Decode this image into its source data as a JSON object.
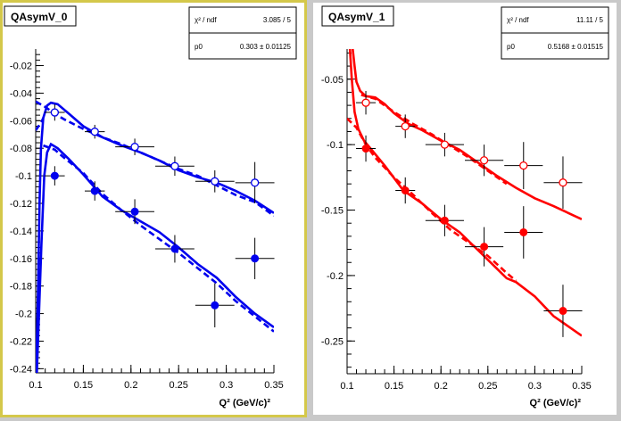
{
  "chart_data": [
    {
      "type": "scatter",
      "title": "QAsymV_0",
      "xlabel": "Q² (GeV/c)²",
      "ylabel": "",
      "xlim": [
        0.1,
        0.35
      ],
      "ylim": [
        -0.243,
        -0.008
      ],
      "xticks": [
        "0.1",
        "0.15",
        "0.2",
        "0.25",
        "0.3",
        "0.35"
      ],
      "yticks": [
        "-0.02",
        "-0.04",
        "-0.06",
        "-0.08",
        "-0.1",
        "-0.12",
        "-0.14",
        "-0.16",
        "-0.18",
        "-0.2",
        "-0.22",
        "-0.24"
      ],
      "color": "#0000ee",
      "frame_color": "#d4c84a",
      "stats": {
        "rows": [
          {
            "label": "χ² / ndf",
            "value": "3.085 / 5"
          },
          {
            "label": "p0",
            "value": "0.303 ± 0.01125"
          }
        ]
      },
      "series": [
        {
          "marker": "open",
          "points": [
            {
              "x": 0.12,
              "y": -0.054,
              "xerr": 0.0105,
              "yerr": 0.006
            },
            {
              "x": 0.162,
              "y": -0.068,
              "xerr": 0.0105,
              "yerr": 0.005
            },
            {
              "x": 0.204,
              "y": -0.079,
              "xerr": 0.0205,
              "yerr": 0.006
            },
            {
              "x": 0.246,
              "y": -0.093,
              "xerr": 0.0205,
              "yerr": 0.007
            },
            {
              "x": 0.288,
              "y": -0.104,
              "xerr": 0.0205,
              "yerr": 0.008
            },
            {
              "x": 0.33,
              "y": -0.105,
              "xerr": 0.0205,
              "yerr": 0.015
            }
          ]
        },
        {
          "marker": "filled",
          "points": [
            {
              "x": 0.12,
              "y": -0.1,
              "xerr": 0.0105,
              "yerr": 0.007
            },
            {
              "x": 0.162,
              "y": -0.111,
              "xerr": 0.0105,
              "yerr": 0.007
            },
            {
              "x": 0.204,
              "y": -0.126,
              "xerr": 0.0205,
              "yerr": 0.009
            },
            {
              "x": 0.246,
              "y": -0.153,
              "xerr": 0.0205,
              "yerr": 0.01
            },
            {
              "x": 0.288,
              "y": -0.194,
              "xerr": 0.0205,
              "yerr": 0.016
            },
            {
              "x": 0.33,
              "y": -0.16,
              "xerr": 0.0205,
              "yerr": 0.015
            }
          ]
        }
      ],
      "curves": [
        {
          "style": "solid",
          "points": [
            [
              0.1005,
              -0.243
            ],
            [
              0.1025,
              -0.18
            ],
            [
              0.104,
              -0.12
            ],
            [
              0.1055,
              -0.08
            ],
            [
              0.108,
              -0.058
            ],
            [
              0.112,
              -0.049
            ],
            [
              0.116,
              -0.047
            ],
            [
              0.123,
              -0.048
            ],
            [
              0.135,
              -0.055
            ],
            [
              0.15,
              -0.064
            ],
            [
              0.17,
              -0.072
            ],
            [
              0.19,
              -0.078
            ],
            [
              0.21,
              -0.083
            ],
            [
              0.23,
              -0.089
            ],
            [
              0.25,
              -0.096
            ],
            [
              0.27,
              -0.101
            ],
            [
              0.29,
              -0.105
            ],
            [
              0.31,
              -0.111
            ],
            [
              0.33,
              -0.118
            ],
            [
              0.35,
              -0.127
            ]
          ]
        },
        {
          "style": "dashed",
          "points": [
            [
              0.1,
              -0.046
            ],
            [
              0.11,
              -0.05
            ],
            [
              0.12,
              -0.055
            ],
            [
              0.13,
              -0.059
            ],
            [
              0.15,
              -0.066
            ],
            [
              0.17,
              -0.072
            ],
            [
              0.19,
              -0.077
            ],
            [
              0.21,
              -0.083
            ],
            [
              0.23,
              -0.089
            ],
            [
              0.25,
              -0.095
            ],
            [
              0.27,
              -0.1
            ],
            [
              0.29,
              -0.107
            ],
            [
              0.31,
              -0.114
            ],
            [
              0.33,
              -0.119
            ],
            [
              0.35,
              -0.129
            ]
          ]
        },
        {
          "style": "dashed",
          "points": [
            [
              0.1,
              -0.067
            ],
            [
              0.103,
              -0.064
            ],
            [
              0.106,
              -0.061
            ],
            [
              0.108,
              -0.058
            ]
          ]
        },
        {
          "style": "solid",
          "points": [
            [
              0.1012,
              -0.243
            ],
            [
              0.1035,
              -0.2
            ],
            [
              0.106,
              -0.15
            ],
            [
              0.109,
              -0.1
            ],
            [
              0.112,
              -0.083
            ],
            [
              0.116,
              -0.077
            ],
            [
              0.123,
              -0.08
            ],
            [
              0.135,
              -0.088
            ],
            [
              0.15,
              -0.099
            ],
            [
              0.17,
              -0.115
            ],
            [
              0.19,
              -0.125
            ],
            [
              0.21,
              -0.133
            ],
            [
              0.23,
              -0.141
            ],
            [
              0.25,
              -0.152
            ],
            [
              0.27,
              -0.164
            ],
            [
              0.29,
              -0.174
            ],
            [
              0.31,
              -0.188
            ],
            [
              0.33,
              -0.2
            ],
            [
              0.35,
              -0.21
            ]
          ]
        },
        {
          "style": "dashed",
          "points": [
            [
              0.108,
              -0.078
            ],
            [
              0.12,
              -0.081
            ],
            [
              0.13,
              -0.087
            ],
            [
              0.15,
              -0.098
            ],
            [
              0.17,
              -0.113
            ],
            [
              0.19,
              -0.125
            ],
            [
              0.21,
              -0.136
            ],
            [
              0.23,
              -0.146
            ],
            [
              0.25,
              -0.156
            ],
            [
              0.27,
              -0.167
            ],
            [
              0.29,
              -0.178
            ],
            [
              0.31,
              -0.191
            ],
            [
              0.33,
              -0.202
            ],
            [
              0.35,
              -0.213
            ]
          ]
        }
      ]
    },
    {
      "type": "scatter",
      "title": "QAsymV_1",
      "xlabel": "Q² (GeV/c)²",
      "ylabel": "",
      "xlim": [
        0.1,
        0.35
      ],
      "ylim": [
        -0.275,
        -0.027
      ],
      "xticks": [
        "0.1",
        "0.15",
        "0.2",
        "0.25",
        "0.3",
        "0.35"
      ],
      "yticks": [
        "-0.05",
        "-0.1",
        "-0.15",
        "-0.2",
        "-0.25"
      ],
      "color": "#ff0000",
      "frame_color": "#ffffff",
      "stats": {
        "rows": [
          {
            "label": "χ² / ndf",
            "value": "11.11 / 5"
          },
          {
            "label": "p0",
            "value": "0.5168 ± 0.01515"
          }
        ]
      },
      "series": [
        {
          "marker": "open",
          "points": [
            {
              "x": 0.12,
              "y": -0.068,
              "xerr": 0.0105,
              "yerr": 0.009
            },
            {
              "x": 0.162,
              "y": -0.086,
              "xerr": 0.0105,
              "yerr": 0.009
            },
            {
              "x": 0.204,
              "y": -0.1,
              "xerr": 0.0205,
              "yerr": 0.009
            },
            {
              "x": 0.246,
              "y": -0.112,
              "xerr": 0.0205,
              "yerr": 0.012
            },
            {
              "x": 0.288,
              "y": -0.116,
              "xerr": 0.0205,
              "yerr": 0.018
            },
            {
              "x": 0.33,
              "y": -0.129,
              "xerr": 0.0205,
              "yerr": 0.02
            }
          ]
        },
        {
          "marker": "filled",
          "points": [
            {
              "x": 0.12,
              "y": -0.103,
              "xerr": 0.0105,
              "yerr": 0.01
            },
            {
              "x": 0.162,
              "y": -0.135,
              "xerr": 0.0105,
              "yerr": 0.01
            },
            {
              "x": 0.204,
              "y": -0.158,
              "xerr": 0.0205,
              "yerr": 0.012
            },
            {
              "x": 0.246,
              "y": -0.178,
              "xerr": 0.0205,
              "yerr": 0.015
            },
            {
              "x": 0.288,
              "y": -0.167,
              "xerr": 0.0205,
              "yerr": 0.02
            },
            {
              "x": 0.33,
              "y": -0.227,
              "xerr": 0.0205,
              "yerr": 0.02
            }
          ]
        }
      ],
      "curves": [
        {
          "style": "solid",
          "points": [
            [
              0.106,
              -0.027
            ],
            [
              0.108,
              -0.04
            ],
            [
              0.11,
              -0.052
            ],
            [
              0.114,
              -0.059
            ],
            [
              0.12,
              -0.063
            ],
            [
              0.13,
              -0.064
            ],
            [
              0.14,
              -0.069
            ],
            [
              0.15,
              -0.076
            ],
            [
              0.165,
              -0.084
            ],
            [
              0.18,
              -0.089
            ],
            [
              0.2,
              -0.097
            ],
            [
              0.22,
              -0.104
            ],
            [
              0.24,
              -0.114
            ],
            [
              0.26,
              -0.124
            ],
            [
              0.28,
              -0.133
            ],
            [
              0.3,
              -0.141
            ],
            [
              0.32,
              -0.147
            ],
            [
              0.35,
              -0.157
            ]
          ]
        },
        {
          "style": "dashed",
          "points": [
            [
              0.115,
              -0.062
            ],
            [
              0.13,
              -0.065
            ],
            [
              0.15,
              -0.075
            ],
            [
              0.17,
              -0.084
            ],
            [
              0.19,
              -0.092
            ],
            [
              0.21,
              -0.101
            ],
            [
              0.23,
              -0.11
            ],
            [
              0.25,
              -0.12
            ],
            [
              0.27,
              -0.13
            ]
          ]
        },
        {
          "style": "solid",
          "points": [
            [
              0.103,
              -0.027
            ],
            [
              0.105,
              -0.05
            ],
            [
              0.108,
              -0.075
            ],
            [
              0.112,
              -0.088
            ],
            [
              0.118,
              -0.097
            ],
            [
              0.125,
              -0.103
            ],
            [
              0.14,
              -0.116
            ],
            [
              0.16,
              -0.135
            ],
            [
              0.18,
              -0.145
            ],
            [
              0.2,
              -0.157
            ],
            [
              0.22,
              -0.167
            ],
            [
              0.24,
              -0.181
            ],
            [
              0.26,
              -0.195
            ],
            [
              0.27,
              -0.202
            ],
            [
              0.28,
              -0.205
            ],
            [
              0.3,
              -0.216
            ],
            [
              0.32,
              -0.231
            ],
            [
              0.35,
              -0.246
            ]
          ]
        },
        {
          "style": "dashed",
          "points": [
            [
              0.1,
              -0.08
            ],
            [
              0.11,
              -0.087
            ],
            [
              0.12,
              -0.1
            ],
            [
              0.13,
              -0.11
            ],
            [
              0.15,
              -0.125
            ],
            [
              0.17,
              -0.138
            ],
            [
              0.19,
              -0.152
            ],
            [
              0.21,
              -0.165
            ],
            [
              0.23,
              -0.175
            ],
            [
              0.25,
              -0.185
            ],
            [
              0.27,
              -0.198
            ],
            [
              0.28,
              -0.204
            ]
          ]
        }
      ]
    }
  ]
}
